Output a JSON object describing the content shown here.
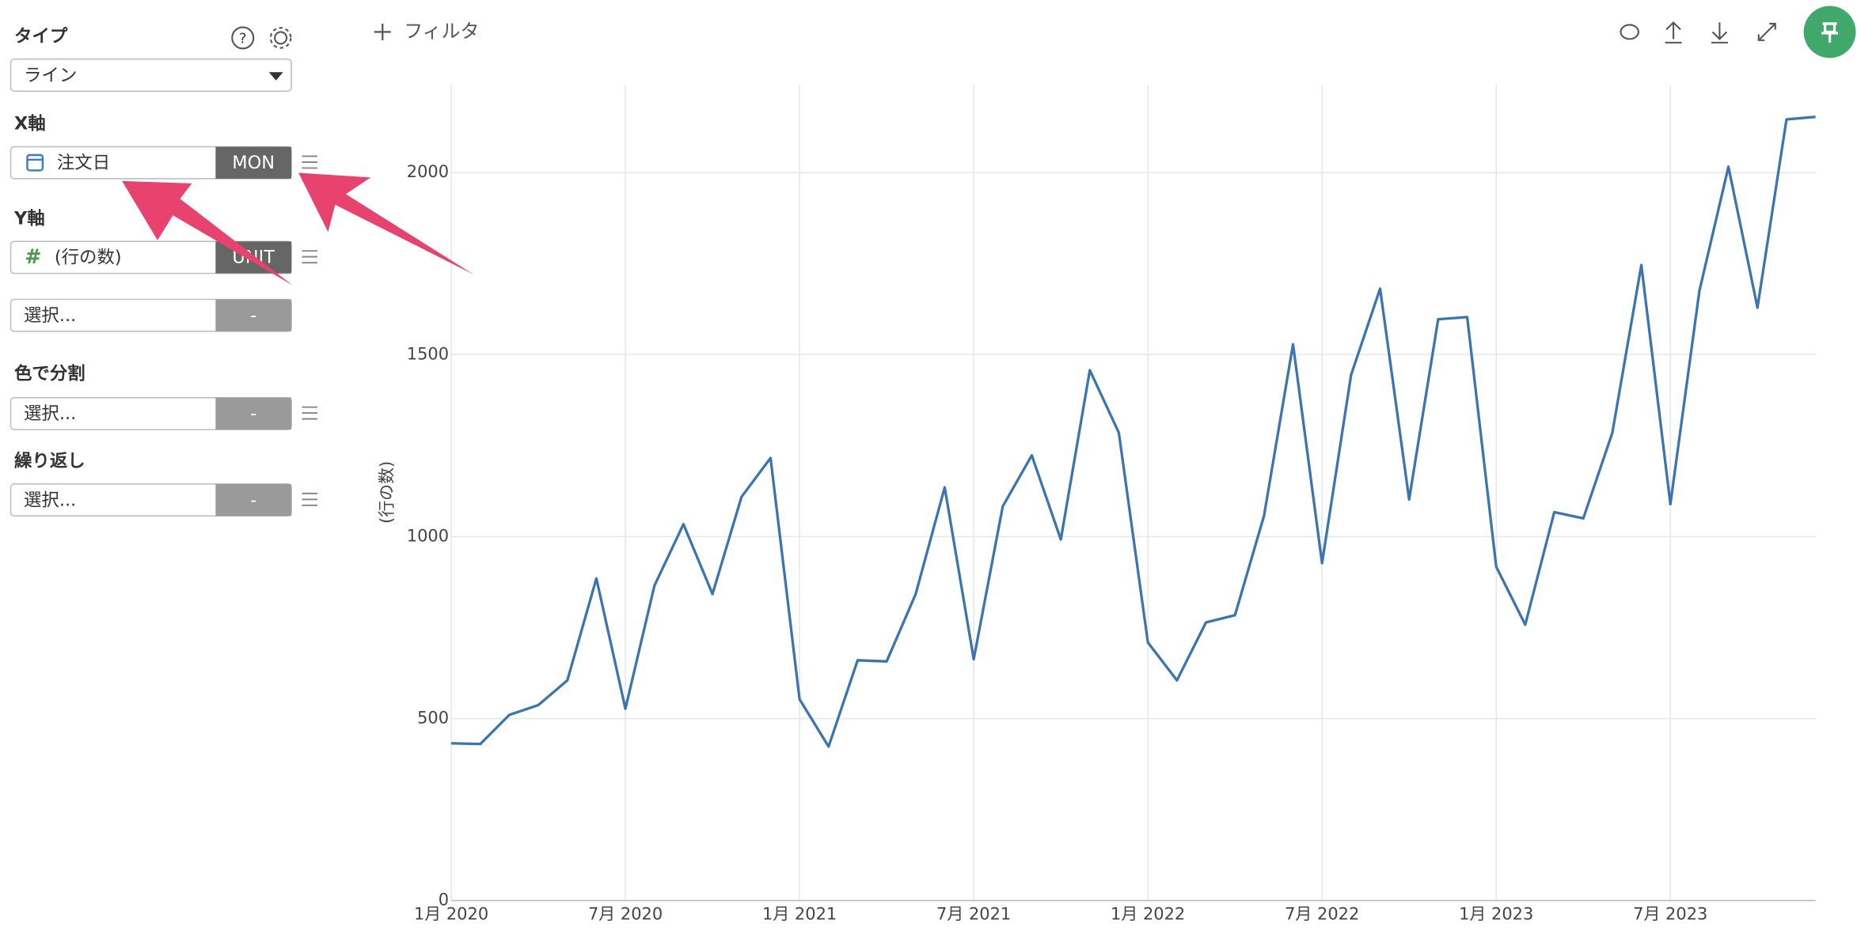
{
  "sidebar": {
    "type_label": "タイプ",
    "type_value": "ライン",
    "x_axis_label": "X軸",
    "x_field": "注文日",
    "x_unit": "MON",
    "y_axis_label": "Y軸",
    "y_field": "(行の数)",
    "y_unit": "UNIT",
    "y2_field": "選択...",
    "y2_unit": "-",
    "color_label": "色で分割",
    "color_field": "選択...",
    "color_unit": "-",
    "repeat_label": "繰り返し",
    "repeat_field": "選択...",
    "repeat_unit": "-"
  },
  "toolbar": {
    "filter": "フィルタ"
  },
  "chart_data": {
    "type": "line",
    "y_label": "(行の数)",
    "x": [
      "2020-01",
      "2020-02",
      "2020-03",
      "2020-04",
      "2020-05",
      "2020-06",
      "2020-07",
      "2020-08",
      "2020-09",
      "2020-10",
      "2020-11",
      "2020-12",
      "2021-01",
      "2021-02",
      "2021-03",
      "2021-04",
      "2021-05",
      "2021-06",
      "2021-07",
      "2021-08",
      "2021-09",
      "2021-10",
      "2021-11",
      "2021-12",
      "2022-01",
      "2022-02",
      "2022-03",
      "2022-04",
      "2022-05",
      "2022-06",
      "2022-07",
      "2022-08",
      "2022-09",
      "2022-10",
      "2022-11",
      "2022-12",
      "2023-01",
      "2023-02",
      "2023-03",
      "2023-04",
      "2023-05",
      "2023-06",
      "2023-07",
      "2023-08",
      "2023-09",
      "2023-10",
      "2023-11",
      "2023-12"
    ],
    "series": [
      {
        "name": "(行の数)",
        "color": "#3b75af",
        "values": [
          432,
          430,
          510,
          537,
          605,
          885,
          527,
          865,
          1034,
          842,
          1109,
          1216,
          553,
          423,
          660,
          657,
          842,
          1135,
          663,
          1083,
          1223,
          992,
          1457,
          1285,
          709,
          605,
          764,
          784,
          1057,
          1528,
          927,
          1444,
          1681,
          1102,
          1597,
          1603,
          917,
          758,
          1067,
          1050,
          1285,
          1746,
          1089,
          1675,
          2016,
          1629,
          2146,
          2153
        ]
      }
    ],
    "xlim": [
      "2020-01",
      "2023-12"
    ],
    "xticks": [
      {
        "value": "2020-01",
        "label": "1月 2020"
      },
      {
        "value": "2020-07",
        "label": "7月 2020"
      },
      {
        "value": "2021-01",
        "label": "1月 2021"
      },
      {
        "value": "2021-07",
        "label": "7月 2021"
      },
      {
        "value": "2022-01",
        "label": "1月 2022"
      },
      {
        "value": "2022-07",
        "label": "7月 2022"
      },
      {
        "value": "2023-01",
        "label": "1月 2023"
      },
      {
        "value": "2023-07",
        "label": "7月 2023"
      }
    ],
    "ylim": [
      0,
      2240
    ],
    "yticks": [
      0,
      500,
      1000,
      1500,
      2000
    ],
    "grid": true
  }
}
